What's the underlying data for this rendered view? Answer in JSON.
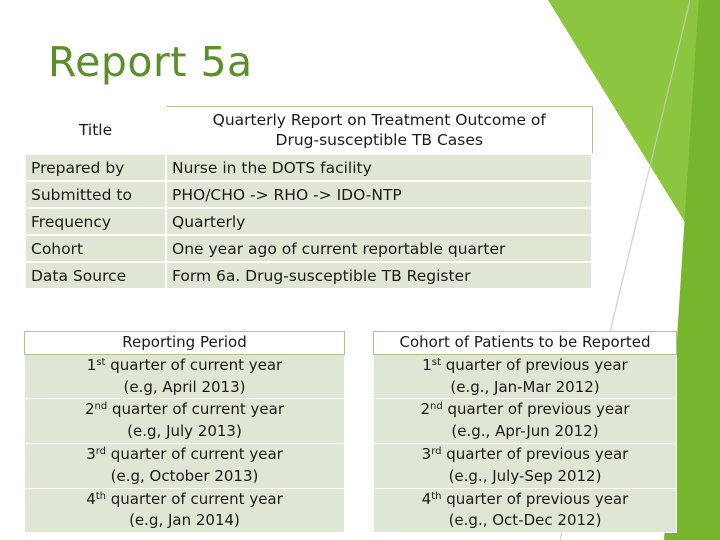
{
  "slide_title": "Report 5a",
  "info_table": {
    "header_label": "Title",
    "header_value_line1": "Quarterly Report on Treatment Outcome of",
    "header_value_line2": "Drug-susceptible TB Cases",
    "rows": [
      {
        "label": "Prepared by",
        "value": "Nurse in the DOTS facility"
      },
      {
        "label": "Submitted to",
        "value": "PHO/CHO -> RHO -> IDO-NTP"
      },
      {
        "label": "Frequency",
        "value": "Quarterly"
      },
      {
        "label": "Cohort",
        "value": "One year ago of current reportable quarter"
      },
      {
        "label": "Data Source",
        "value": "Form 6a. Drug-susceptible TB Register"
      }
    ]
  },
  "reporting_period": {
    "header": "Reporting Period",
    "rows": [
      {
        "num": "1",
        "sup": "st",
        "line1_rest": " quarter of current year",
        "line2": "(e.g, April 2013)"
      },
      {
        "num": "2",
        "sup": "nd",
        "line1_rest": " quarter of current year",
        "line2": "(e.g, July 2013)"
      },
      {
        "num": "3",
        "sup": "rd",
        "line1_rest": " quarter of current year",
        "line2": "(e.g, October 2013)"
      },
      {
        "num": "4",
        "sup": "th",
        "line1_rest": " quarter of current year",
        "line2": "(e.g, Jan 2014)"
      }
    ]
  },
  "cohort_patients": {
    "header": "Cohort of Patients to be Reported",
    "rows": [
      {
        "num": "1",
        "sup": "st",
        "line1_rest": " quarter of previous year",
        "line2": "(e.g., Jan-Mar 2012)"
      },
      {
        "num": "2",
        "sup": "nd",
        "line1_rest": " quarter of previous year",
        "line2": "(e.g., Apr-Jun 2012)"
      },
      {
        "num": "3",
        "sup": "rd",
        "line1_rest": " quarter of previous year",
        "line2": "(e.g., July-Sep 2012)"
      },
      {
        "num": "4",
        "sup": "th",
        "line1_rest": " quarter of previous year",
        "line2": "(e.g., Oct-Dec 2012)"
      }
    ]
  },
  "colors": {
    "title": "#5a8f29",
    "accent_green": "#8cc63f",
    "accent_dark_green": "#77b62c",
    "cell_fill": "#dfe7d4"
  }
}
